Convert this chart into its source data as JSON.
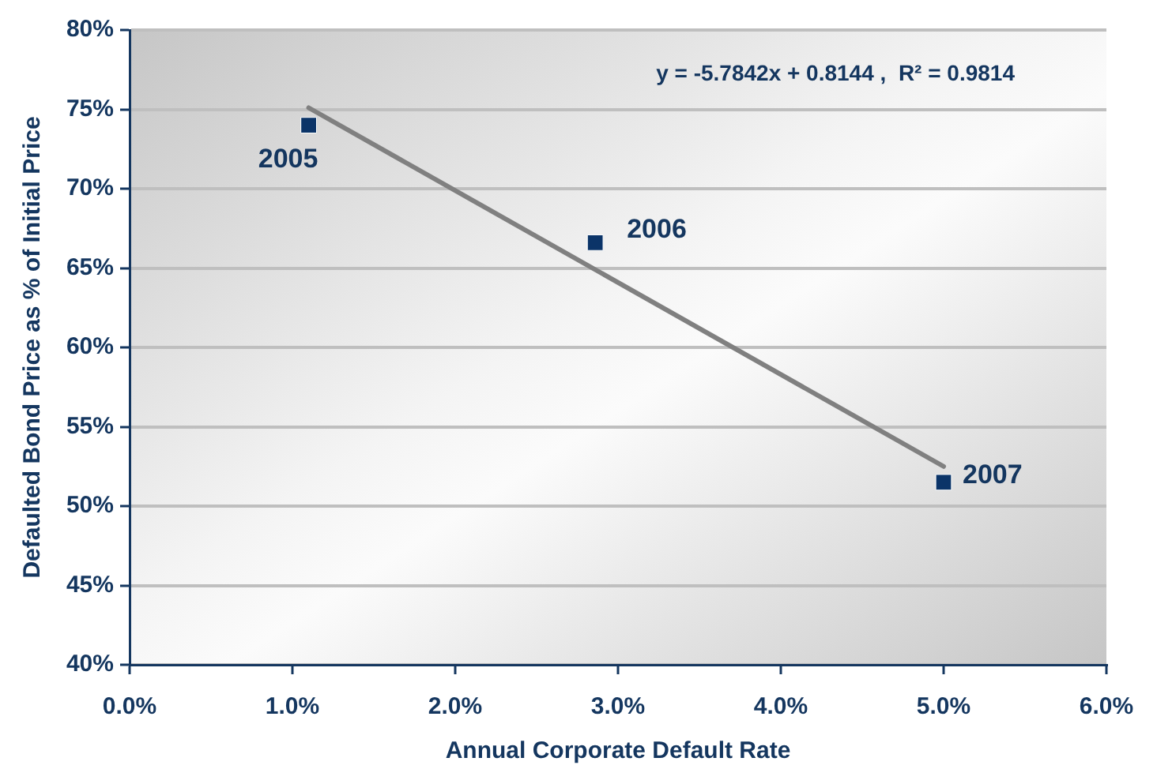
{
  "chart_data": {
    "type": "scatter",
    "xlabel": "Annual Corporate Default Rate",
    "ylabel": "Defaulted Bond Price as % of Initial Price",
    "x": [
      1.1,
      2.86,
      5.0
    ],
    "series": [
      {
        "type": "scatter",
        "color": "#0b3468",
        "values": [
          74.0,
          66.6,
          51.5
        ]
      },
      {
        "type": "line",
        "color": "#808080",
        "x": [
          1.1,
          5.0
        ],
        "values": [
          75.1,
          52.5
        ],
        "marker": "none"
      }
    ],
    "xlim": [
      0,
      6
    ],
    "xticks": [
      {
        "value": 0,
        "label": "0.0%"
      },
      {
        "value": 1,
        "label": "1.0%"
      },
      {
        "value": 2,
        "label": "2.0%"
      },
      {
        "value": 3,
        "label": "3.0%"
      },
      {
        "value": 4,
        "label": "4.0%"
      },
      {
        "value": 5,
        "label": "5.0%"
      },
      {
        "value": 6,
        "label": "6.0%"
      }
    ],
    "ylim": [
      40,
      80
    ],
    "yticks": [
      {
        "value": 40,
        "label": "40%"
      },
      {
        "value": 45,
        "label": "45%"
      },
      {
        "value": 50,
        "label": "50%"
      },
      {
        "value": 55,
        "label": "55%"
      },
      {
        "value": 60,
        "label": "60%"
      },
      {
        "value": 65,
        "label": "65%"
      },
      {
        "value": 70,
        "label": "70%"
      },
      {
        "value": 75,
        "label": "75%"
      },
      {
        "value": 80,
        "label": "80%"
      }
    ],
    "grid": "y",
    "marker": "square",
    "annotations": [
      {
        "text": "2005",
        "x": 1.1,
        "y": 74.0
      },
      {
        "text": "2006",
        "x": 2.86,
        "y": 66.6
      },
      {
        "text": "2007",
        "x": 5.0,
        "y": 51.5
      },
      "y = -5.7842x + 0.8144 ,  R² = 0.9814"
    ]
  }
}
